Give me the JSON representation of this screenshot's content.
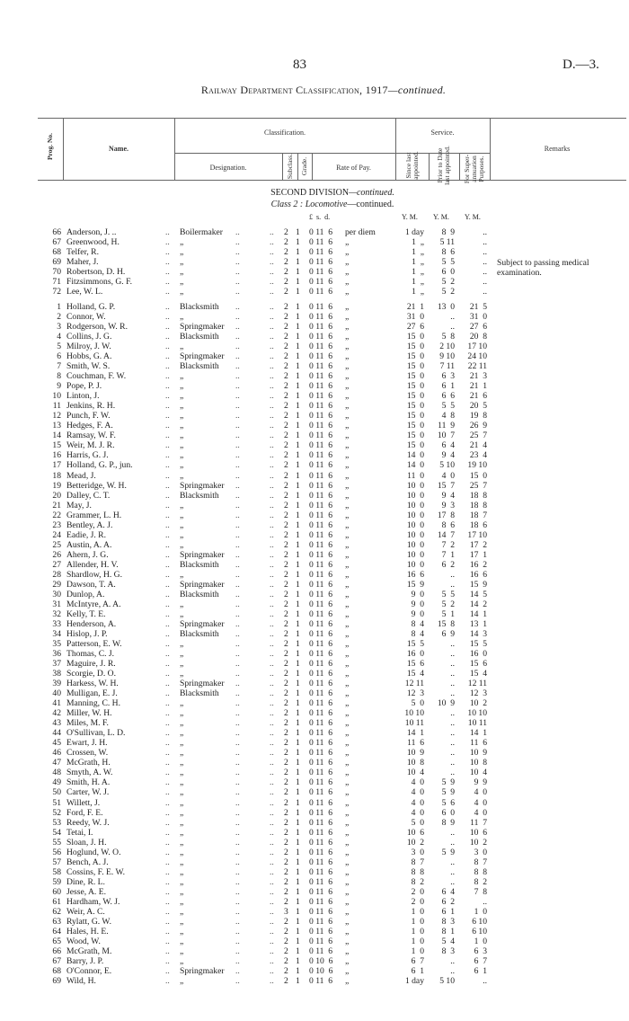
{
  "page_number": "83",
  "doc_ref": "D.—3.",
  "title": {
    "main": "Railway Department Classification, 1917",
    "suffix": "—continued."
  },
  "header": {
    "prog_no": "Prog. No.",
    "name": "Name.",
    "classification": "Classification.",
    "designation": "Designation.",
    "subclass": "Subclass.",
    "grade": "Grade.",
    "rate_of_pay": "Rate of Pay.",
    "service": "Service.",
    "since_last": "Since last appointed.",
    "prior_to": "Prior to Date last appointed.",
    "superannuation": "For Super-annuation Purposes.",
    "remarks": "Remarks"
  },
  "section": {
    "division": "SECOND DIVISION",
    "division_suffix": "—continued.",
    "class_label": "Class 2 : Locomotive",
    "class_suffix": "—continued."
  },
  "units": {
    "pay": "£  s.  d.",
    "since": "Y. M.",
    "prior": "Y. M.",
    "super": "Y. M."
  },
  "leader": "..",
  "remark_69": "Subject to passing medical examination.",
  "groups": [
    [
      [
        "66",
        "Anderson, J. ..",
        "Boilermaker",
        "2",
        "1",
        "0 11  6",
        "per diem",
        "1 day",
        "8  9",
        ".."
      ],
      [
        "67",
        "Greenwood, H.",
        "„",
        "2",
        "1",
        "0 11  6",
        "„",
        "1  „",
        "5 11",
        ".."
      ],
      [
        "68",
        "Telfer, R.",
        "„",
        "2",
        "1",
        "0 11  6",
        "„",
        "1  „",
        "8  6",
        ".."
      ],
      [
        "69",
        "Maher, J.",
        "„",
        "2",
        "1",
        "0 11  6",
        "„",
        "1  „",
        "5  5",
        ".."
      ]
    ],
    [
      [
        "70",
        "Robertson, D. H.",
        "„",
        "2",
        "1",
        "0 11  6",
        "„",
        "1  „",
        "6  0",
        ".."
      ],
      [
        "71",
        "Fitzsimmons, G. F.",
        "„",
        "2",
        "1",
        "0 11  6",
        "„",
        "1  „",
        "5  2",
        ".."
      ],
      [
        "72",
        "Lee, W. L.",
        "„",
        "2",
        "1",
        "0 11  6",
        "„",
        "1  „",
        "5  2",
        ".."
      ]
    ],
    [
      [
        "1",
        "Holland, G. P.",
        "Blacksmith",
        "2",
        "1",
        "0 11  6",
        "„",
        "21  1",
        "13  0",
        "21  5"
      ],
      [
        "2",
        "Connor, W.",
        "„",
        "2",
        "1",
        "0 11  6",
        "„",
        "31  0",
        "..",
        "31  0"
      ],
      [
        "3",
        "Rodgerson, W. R.",
        "Springmaker",
        "2",
        "1",
        "0 11  6",
        "„",
        "27  6",
        "..",
        "27  6"
      ],
      [
        "4",
        "Collins, J. G.",
        "Blacksmith",
        "2",
        "1",
        "0 11  6",
        "„",
        "15  0",
        "5  8",
        "20  8"
      ],
      [
        "5",
        "Milroy, J. W.",
        "„",
        "2",
        "1",
        "0 11  6",
        "„",
        "15  0",
        "2 10",
        "17 10"
      ],
      [
        "6",
        "Hobbs, G. A.",
        "Springmaker",
        "2",
        "1",
        "0 11  6",
        "„",
        "15  0",
        "9 10",
        "24 10"
      ],
      [
        "7",
        "Smith, W. S.",
        "Blacksmith",
        "2",
        "1",
        "0 11  6",
        "„",
        "15  0",
        "7 11",
        "22 11"
      ],
      [
        "8",
        "Couchman, F. W.",
        "„",
        "2",
        "1",
        "0 11  6",
        "„",
        "15  0",
        "6  3",
        "21  3"
      ],
      [
        "9",
        "Pope, P. J.",
        "„",
        "2",
        "1",
        "0 11  6",
        "„",
        "15  0",
        "6  1",
        "21  1"
      ],
      [
        "10",
        "Linton, J.",
        "„",
        "2",
        "1",
        "0 11  6",
        "„",
        "15  0",
        "6  6",
        "21  6"
      ],
      [
        "11",
        "Jenkins, R. H.",
        "„",
        "2",
        "1",
        "0 11  6",
        "„",
        "15  0",
        "5  5",
        "20  5"
      ],
      [
        "12",
        "Punch, F. W.",
        "„",
        "2",
        "1",
        "0 11  6",
        "„",
        "15  0",
        "4  8",
        "19  8"
      ],
      [
        "13",
        "Hedges, F. A.",
        "„",
        "2",
        "1",
        "0 11  6",
        "„",
        "15  0",
        "11  9",
        "26  9"
      ],
      [
        "14",
        "Ramsay, W. F.",
        "„",
        "2",
        "1",
        "0 11  6",
        "„",
        "15  0",
        "10  7",
        "25  7"
      ],
      [
        "15",
        "Weir, M. J. R.",
        "„",
        "2",
        "1",
        "0 11  6",
        "„",
        "15  0",
        "6  4",
        "21  4"
      ],
      [
        "16",
        "Harris, G. J.",
        "„",
        "2",
        "1",
        "0 11  6",
        "„",
        "14  0",
        "9  4",
        "23  4"
      ],
      [
        "17",
        "Holland, G. P., jun.",
        "„",
        "2",
        "1",
        "0 11  6",
        "„",
        "14  0",
        "5 10",
        "19 10"
      ],
      [
        "18",
        "Mead, J.",
        "„",
        "2",
        "1",
        "0 11  6",
        "„",
        "11  0",
        "4  0",
        "15  0"
      ],
      [
        "19",
        "Betteridge, W. H.",
        "Springmaker",
        "2",
        "1",
        "0 11  6",
        "„",
        "10  0",
        "15  7",
        "25  7"
      ],
      [
        "20",
        "Dalley, C. T.",
        "Blacksmith",
        "2",
        "1",
        "0 11  6",
        "„",
        "10  0",
        "9  4",
        "18  8"
      ],
      [
        "21",
        "May, J.",
        "„",
        "2",
        "1",
        "0 11  6",
        "„",
        "10  0",
        "9  3",
        "18  8"
      ],
      [
        "22",
        "Grammer, L. H.",
        "„",
        "2",
        "1",
        "0 11  6",
        "„",
        "10  0",
        "17  8",
        "18  7"
      ],
      [
        "23",
        "Bentley, A. J.",
        "„",
        "2",
        "1",
        "0 11  6",
        "„",
        "10  0",
        "8  6",
        "18  6"
      ],
      [
        "24",
        "Eadie, J. R.",
        "„",
        "2",
        "1",
        "0 11  6",
        "„",
        "10  0",
        "14  7",
        "17 10"
      ],
      [
        "25",
        "Austin, A. A.",
        "„",
        "2",
        "1",
        "0 11  6",
        "„",
        "10  0",
        "7  2",
        "17  2"
      ],
      [
        "26",
        "Ahern, J. G.",
        "Springmaker",
        "2",
        "1",
        "0 11  6",
        "„",
        "10  0",
        "7  1",
        "17  1"
      ],
      [
        "27",
        "Allender, H. V.",
        "Blacksmith",
        "2",
        "1",
        "0 11  6",
        "„",
        "10  0",
        "6  2",
        "16  2"
      ],
      [
        "28",
        "Shardlow, H. G.",
        "„",
        "2",
        "1",
        "0 11  6",
        "„",
        "16  6",
        "..",
        "16  6"
      ],
      [
        "29",
        "Dawson, T. A.",
        "Springmaker",
        "2",
        "1",
        "0 11  6",
        "„",
        "15  9",
        "..",
        "15  9"
      ],
      [
        "30",
        "Dunlop, A.",
        "Blacksmith",
        "2",
        "1",
        "0 11  6",
        "„",
        "9  0",
        "5  5",
        "14  5"
      ],
      [
        "31",
        "McIntyre, A. A.",
        "„",
        "2",
        "1",
        "0 11  6",
        "„",
        "9  0",
        "5  2",
        "14  2"
      ],
      [
        "32",
        "Kelly, T. E.",
        "„",
        "2",
        "1",
        "0 11  6",
        "„",
        "9  0",
        "5  1",
        "14  1"
      ],
      [
        "33",
        "Henderson, A.",
        "Springmaker",
        "2",
        "1",
        "0 11  6",
        "„",
        "8  4",
        "15  8",
        "13  1"
      ],
      [
        "34",
        "Hislop, J. P.",
        "Blacksmith",
        "2",
        "1",
        "0 11  6",
        "„",
        "8  4",
        "6  9",
        "14  3"
      ],
      [
        "35",
        "Patterson, E. W.",
        "„",
        "2",
        "1",
        "0 11  6",
        "„",
        "15  5",
        "..",
        "15  5"
      ],
      [
        "36",
        "Thomas, C. J.",
        "„",
        "2",
        "1",
        "0 11  6",
        "„",
        "16  0",
        "..",
        "16  0"
      ],
      [
        "37",
        "Maguire, J. R.",
        "„",
        "2",
        "1",
        "0 11  6",
        "„",
        "15  6",
        "..",
        "15  6"
      ],
      [
        "38",
        "Scorgie, D. O.",
        "„",
        "2",
        "1",
        "0 11  6",
        "„",
        "15  4",
        "..",
        "15  4"
      ],
      [
        "39",
        "Harkess, W. H.",
        "Springmaker",
        "2",
        "1",
        "0 11  6",
        "„",
        "12 11",
        "..",
        "12 11"
      ],
      [
        "40",
        "Mulligan, E. J.",
        "Blacksmith",
        "2",
        "1",
        "0 11  6",
        "„",
        "12  3",
        "..",
        "12  3"
      ],
      [
        "41",
        "Manning, C. H.",
        "„",
        "2",
        "1",
        "0 11  6",
        "„",
        "5  0",
        "10  9",
        "10  2"
      ],
      [
        "42",
        "Miller, W. H.",
        "„",
        "2",
        "1",
        "0 11  6",
        "„",
        "10 10",
        "..",
        "10 10"
      ],
      [
        "43",
        "Miles, M. F.",
        "„",
        "2",
        "1",
        "0 11  6",
        "„",
        "10 11",
        "..",
        "10 11"
      ],
      [
        "44",
        "O'Sullivan, L. D.",
        "„",
        "2",
        "1",
        "0 11  6",
        "„",
        "14  1",
        "..",
        "14  1"
      ],
      [
        "45",
        "Ewart, J. H.",
        "„",
        "2",
        "1",
        "0 11  6",
        "„",
        "11  6",
        "..",
        "11  6"
      ],
      [
        "46",
        "Crossen, W.",
        "„",
        "2",
        "1",
        "0 11  6",
        "„",
        "10  9",
        "..",
        "10  9"
      ],
      [
        "47",
        "McGrath, H.",
        "„",
        "2",
        "1",
        "0 11  6",
        "„",
        "10  8",
        "..",
        "10  8"
      ],
      [
        "48",
        "Smyth, A. W.",
        "„",
        "2",
        "1",
        "0 11  6",
        "„",
        "10  4",
        "..",
        "10  4"
      ],
      [
        "49",
        "Smith, H. A.",
        "„",
        "2",
        "1",
        "0 11  6",
        "„",
        "4  0",
        "5  9",
        "9  9"
      ],
      [
        "50",
        "Carter, W. J.",
        "„",
        "2",
        "1",
        "0 11  6",
        "„",
        "4  0",
        "5  9",
        "4  0"
      ],
      [
        "51",
        "Willett, J.",
        "„",
        "2",
        "1",
        "0 11  6",
        "„",
        "4  0",
        "5  6",
        "4  0"
      ],
      [
        "52",
        "Ford, F. E.",
        "„",
        "2",
        "1",
        "0 11  6",
        "„",
        "4  0",
        "6  0",
        "4  0"
      ],
      [
        "53",
        "Reedy, W. J.",
        "„",
        "2",
        "1",
        "0 11  6",
        "„",
        "5  0",
        "8  9",
        "11  7"
      ],
      [
        "54",
        "Tetai, I.",
        "„",
        "2",
        "1",
        "0 11  6",
        "„",
        "10  6",
        "..",
        "10  6"
      ],
      [
        "55",
        "Sloan, J. H.",
        "„",
        "2",
        "1",
        "0 11  6",
        "„",
        "10  2",
        "..",
        "10  2"
      ],
      [
        "56",
        "Hoglund, W. O.",
        "„",
        "2",
        "1",
        "0 11  6",
        "„",
        "3  0",
        "5  9",
        "3  0"
      ],
      [
        "57",
        "Bench, A. J.",
        "„",
        "2",
        "1",
        "0 11  6",
        "„",
        "8  7",
        "..",
        "8  7"
      ],
      [
        "58",
        "Cossins, F. E. W.",
        "„",
        "2",
        "1",
        "0 11  6",
        "„",
        "8  8",
        "..",
        "8  8"
      ],
      [
        "59",
        "Dine, R. L.",
        "„",
        "2",
        "1",
        "0 11  6",
        "„",
        "8  2",
        "..",
        "8  2"
      ],
      [
        "60",
        "Jesse, A. E.",
        "„",
        "2",
        "1",
        "0 11  6",
        "„",
        "2  0",
        "6  4",
        "7  8"
      ],
      [
        "61",
        "Hardham, W. J.",
        "„",
        "2",
        "1",
        "0 11  6",
        "„",
        "2  0",
        "6  2",
        ".."
      ],
      [
        "62",
        "Weir, A. C.",
        "„",
        "3",
        "1",
        "0 11  6",
        "„",
        "1  0",
        "6  1",
        "1  0"
      ],
      [
        "63",
        "Rylatt, G. W.",
        "„",
        "2",
        "1",
        "0 11  6",
        "„",
        "1  0",
        "8  3",
        "6 10"
      ],
      [
        "64",
        "Hales, H. E.",
        "„",
        "2",
        "1",
        "0 11  6",
        "„",
        "1  0",
        "8  1",
        "6 10"
      ],
      [
        "65",
        "Wood, W.",
        "„",
        "2",
        "1",
        "0 11  6",
        "„",
        "1  0",
        "5  4",
        "1  0"
      ],
      [
        "66",
        "McGrath, M.",
        "„",
        "2",
        "1",
        "0 11  6",
        "„",
        "1  0",
        "8  3",
        "6  3"
      ],
      [
        "67",
        "Barry, J. P.",
        "„",
        "2",
        "1",
        "0 10  6",
        "„",
        "6  7",
        "..",
        "6  7"
      ],
      [
        "68",
        "O'Connor, E.",
        "Springmaker",
        "2",
        "1",
        "0 10  6",
        "„",
        "6  1",
        "..",
        "6  1"
      ],
      [
        "69",
        "Wild, H.",
        "„",
        "2",
        "1",
        "0 11  6",
        "„",
        "1 day",
        "5 10",
        ".."
      ]
    ]
  ]
}
